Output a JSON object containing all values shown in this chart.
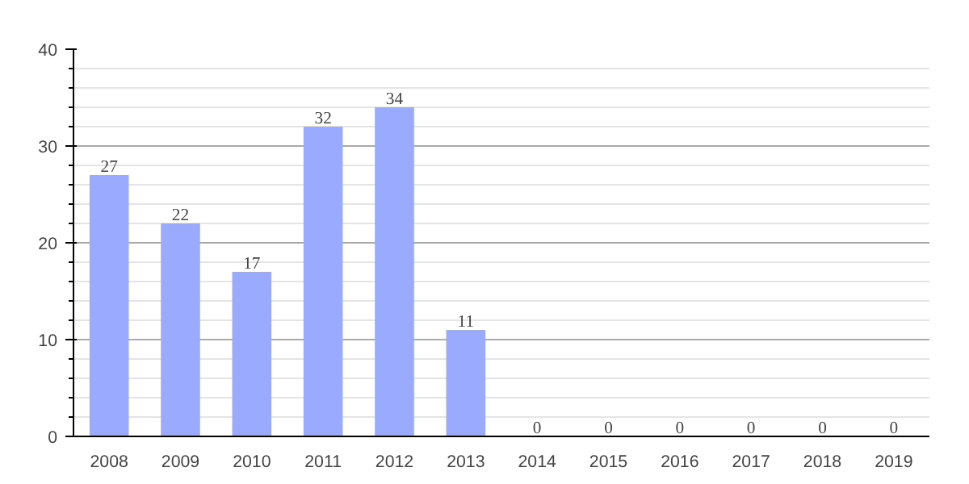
{
  "chart_data": {
    "type": "bar",
    "categories": [
      "2008",
      "2009",
      "2010",
      "2011",
      "2012",
      "2013",
      "2014",
      "2015",
      "2016",
      "2017",
      "2018",
      "2019"
    ],
    "values": [
      27,
      22,
      17,
      32,
      34,
      11,
      0,
      0,
      0,
      0,
      0,
      0
    ],
    "color": "#9aabff",
    "ylim": [
      0,
      40
    ],
    "yticks": [
      0,
      10,
      20,
      30,
      40
    ],
    "grid": "y",
    "data_labels": true
  }
}
